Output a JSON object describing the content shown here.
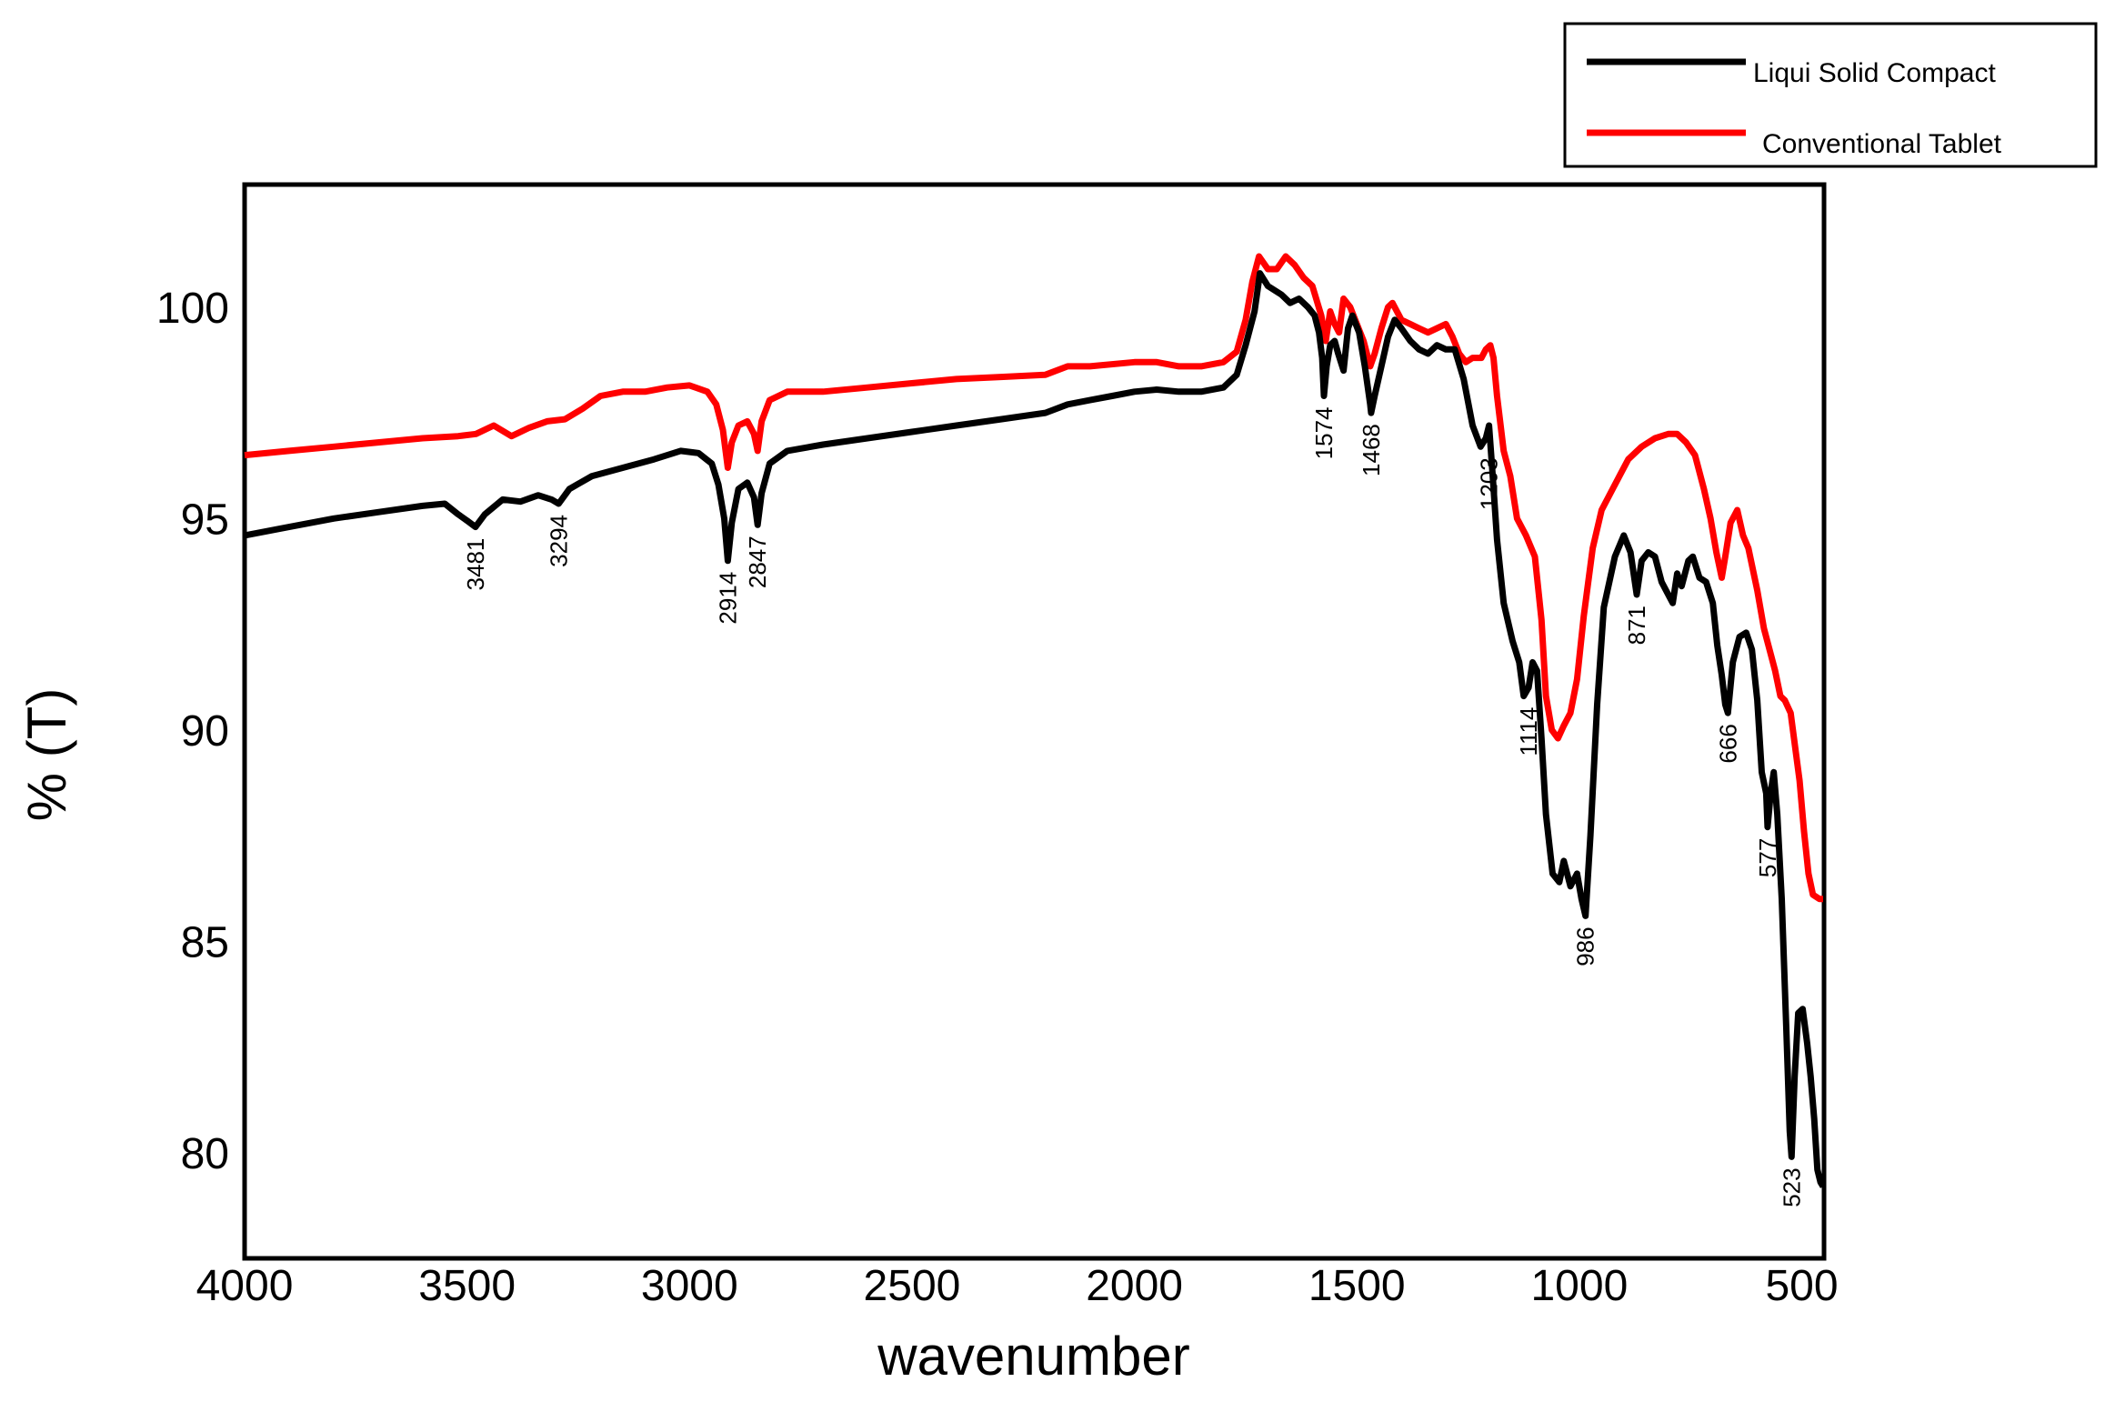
{
  "chart_data": {
    "type": "line",
    "xlabel": "wavenumber",
    "ylabel": "% (T)",
    "xlim": [
      4000,
      450
    ],
    "ylim": [
      77.5,
      102.9
    ],
    "x_reversed": true,
    "grid": false,
    "legend_position": "top-right",
    "xticks": [
      "4000",
      "3500",
      "3000",
      "2500",
      "2000",
      "1500",
      "1000",
      "500"
    ],
    "yticks": [
      "80",
      "85",
      "90",
      "95",
      "100"
    ],
    "colors": {
      "liqui_solid": "#000000",
      "conventional": "#ff0000"
    },
    "series": [
      {
        "name": "Liqui Solid Compact",
        "points": [
          [
            4000,
            94.6
          ],
          [
            3900,
            94.8
          ],
          [
            3800,
            95.0
          ],
          [
            3700,
            95.15
          ],
          [
            3600,
            95.3
          ],
          [
            3550,
            95.35
          ],
          [
            3520,
            95.1
          ],
          [
            3500,
            94.95
          ],
          [
            3481,
            94.8
          ],
          [
            3460,
            95.1
          ],
          [
            3420,
            95.45
          ],
          [
            3380,
            95.4
          ],
          [
            3340,
            95.55
          ],
          [
            3310,
            95.45
          ],
          [
            3294,
            95.35
          ],
          [
            3270,
            95.7
          ],
          [
            3220,
            96.0
          ],
          [
            3150,
            96.2
          ],
          [
            3080,
            96.4
          ],
          [
            3020,
            96.6
          ],
          [
            2980,
            96.55
          ],
          [
            2950,
            96.3
          ],
          [
            2935,
            95.8
          ],
          [
            2922,
            95.0
          ],
          [
            2914,
            94.0
          ],
          [
            2905,
            94.9
          ],
          [
            2890,
            95.7
          ],
          [
            2870,
            95.85
          ],
          [
            2855,
            95.5
          ],
          [
            2847,
            94.85
          ],
          [
            2838,
            95.6
          ],
          [
            2820,
            96.3
          ],
          [
            2780,
            96.6
          ],
          [
            2700,
            96.75
          ],
          [
            2600,
            96.9
          ],
          [
            2500,
            97.05
          ],
          [
            2400,
            97.2
          ],
          [
            2300,
            97.35
          ],
          [
            2200,
            97.5
          ],
          [
            2150,
            97.7
          ],
          [
            2100,
            97.8
          ],
          [
            2050,
            97.9
          ],
          [
            2000,
            98.0
          ],
          [
            1950,
            98.05
          ],
          [
            1900,
            98.0
          ],
          [
            1850,
            98.0
          ],
          [
            1800,
            98.1
          ],
          [
            1770,
            98.4
          ],
          [
            1750,
            99.1
          ],
          [
            1730,
            99.9
          ],
          [
            1718,
            100.8
          ],
          [
            1700,
            100.5
          ],
          [
            1670,
            100.3
          ],
          [
            1650,
            100.1
          ],
          [
            1630,
            100.2
          ],
          [
            1610,
            100.0
          ],
          [
            1595,
            99.8
          ],
          [
            1585,
            99.4
          ],
          [
            1578,
            98.8
          ],
          [
            1574,
            97.9
          ],
          [
            1568,
            98.6
          ],
          [
            1560,
            99.1
          ],
          [
            1550,
            99.2
          ],
          [
            1542,
            98.9
          ],
          [
            1530,
            98.5
          ],
          [
            1520,
            99.5
          ],
          [
            1510,
            99.8
          ],
          [
            1495,
            99.4
          ],
          [
            1482,
            98.6
          ],
          [
            1470,
            97.7
          ],
          [
            1468,
            97.5
          ],
          [
            1460,
            97.9
          ],
          [
            1445,
            98.6
          ],
          [
            1430,
            99.3
          ],
          [
            1415,
            99.7
          ],
          [
            1400,
            99.5
          ],
          [
            1380,
            99.2
          ],
          [
            1360,
            99.0
          ],
          [
            1340,
            98.9
          ],
          [
            1320,
            99.1
          ],
          [
            1300,
            99.0
          ],
          [
            1280,
            99.0
          ],
          [
            1260,
            98.3
          ],
          [
            1240,
            97.2
          ],
          [
            1222,
            96.7
          ],
          [
            1210,
            96.9
          ],
          [
            1203,
            97.2
          ],
          [
            1196,
            96.2
          ],
          [
            1185,
            94.5
          ],
          [
            1170,
            93.0
          ],
          [
            1150,
            92.1
          ],
          [
            1135,
            91.6
          ],
          [
            1125,
            90.8
          ],
          [
            1114,
            91.0
          ],
          [
            1105,
            91.6
          ],
          [
            1095,
            91.4
          ],
          [
            1085,
            89.8
          ],
          [
            1075,
            88.0
          ],
          [
            1060,
            86.6
          ],
          [
            1045,
            86.4
          ],
          [
            1035,
            86.9
          ],
          [
            1020,
            86.3
          ],
          [
            1005,
            86.6
          ],
          [
            995,
            86.0
          ],
          [
            986,
            85.6
          ],
          [
            975,
            87.5
          ],
          [
            960,
            90.6
          ],
          [
            945,
            92.9
          ],
          [
            920,
            94.1
          ],
          [
            900,
            94.6
          ],
          [
            885,
            94.2
          ],
          [
            871,
            93.2
          ],
          [
            860,
            94.0
          ],
          [
            845,
            94.2
          ],
          [
            830,
            94.1
          ],
          [
            815,
            93.5
          ],
          [
            800,
            93.2
          ],
          [
            790,
            93.0
          ],
          [
            780,
            93.7
          ],
          [
            770,
            93.4
          ],
          [
            755,
            94.0
          ],
          [
            745,
            94.1
          ],
          [
            730,
            93.6
          ],
          [
            715,
            93.5
          ],
          [
            700,
            93.0
          ],
          [
            690,
            92.0
          ],
          [
            680,
            91.3
          ],
          [
            672,
            90.6
          ],
          [
            666,
            90.4
          ],
          [
            655,
            91.6
          ],
          [
            640,
            92.2
          ],
          [
            625,
            92.3
          ],
          [
            612,
            91.9
          ],
          [
            600,
            90.7
          ],
          [
            590,
            89.0
          ],
          [
            580,
            88.5
          ],
          [
            577,
            87.7
          ],
          [
            570,
            88.5
          ],
          [
            563,
            89.0
          ],
          [
            555,
            88.0
          ],
          [
            545,
            86.0
          ],
          [
            535,
            83.0
          ],
          [
            527,
            80.5
          ],
          [
            523,
            79.9
          ],
          [
            516,
            81.8
          ],
          [
            508,
            83.3
          ],
          [
            498,
            83.4
          ],
          [
            488,
            82.6
          ],
          [
            480,
            81.8
          ],
          [
            472,
            80.8
          ],
          [
            465,
            79.6
          ],
          [
            458,
            79.3
          ],
          [
            452,
            79.2
          ]
        ]
      },
      {
        "name": "Conventional Tablet",
        "points": [
          [
            4000,
            96.5
          ],
          [
            3900,
            96.6
          ],
          [
            3800,
            96.7
          ],
          [
            3700,
            96.8
          ],
          [
            3600,
            96.9
          ],
          [
            3520,
            96.95
          ],
          [
            3480,
            97.0
          ],
          [
            3440,
            97.2
          ],
          [
            3400,
            96.95
          ],
          [
            3360,
            97.15
          ],
          [
            3320,
            97.3
          ],
          [
            3280,
            97.35
          ],
          [
            3240,
            97.6
          ],
          [
            3200,
            97.9
          ],
          [
            3150,
            98.0
          ],
          [
            3100,
            98.0
          ],
          [
            3050,
            98.1
          ],
          [
            3000,
            98.15
          ],
          [
            2960,
            98.0
          ],
          [
            2940,
            97.7
          ],
          [
            2925,
            97.1
          ],
          [
            2914,
            96.2
          ],
          [
            2905,
            96.8
          ],
          [
            2890,
            97.2
          ],
          [
            2870,
            97.3
          ],
          [
            2855,
            97.0
          ],
          [
            2847,
            96.6
          ],
          [
            2838,
            97.3
          ],
          [
            2820,
            97.8
          ],
          [
            2780,
            98.0
          ],
          [
            2700,
            98.0
          ],
          [
            2600,
            98.1
          ],
          [
            2500,
            98.2
          ],
          [
            2400,
            98.3
          ],
          [
            2300,
            98.35
          ],
          [
            2200,
            98.4
          ],
          [
            2150,
            98.6
          ],
          [
            2100,
            98.6
          ],
          [
            2000,
            98.7
          ],
          [
            1950,
            98.7
          ],
          [
            1900,
            98.6
          ],
          [
            1850,
            98.6
          ],
          [
            1800,
            98.7
          ],
          [
            1770,
            98.95
          ],
          [
            1750,
            99.7
          ],
          [
            1735,
            100.6
          ],
          [
            1720,
            101.2
          ],
          [
            1700,
            100.9
          ],
          [
            1680,
            100.9
          ],
          [
            1660,
            101.2
          ],
          [
            1640,
            101.0
          ],
          [
            1620,
            100.7
          ],
          [
            1600,
            100.5
          ],
          [
            1580,
            99.8
          ],
          [
            1570,
            99.2
          ],
          [
            1560,
            99.9
          ],
          [
            1550,
            99.6
          ],
          [
            1540,
            99.4
          ],
          [
            1530,
            100.2
          ],
          [
            1515,
            100.0
          ],
          [
            1500,
            99.6
          ],
          [
            1485,
            99.2
          ],
          [
            1470,
            98.6
          ],
          [
            1460,
            98.9
          ],
          [
            1445,
            99.5
          ],
          [
            1430,
            100.0
          ],
          [
            1420,
            100.1
          ],
          [
            1400,
            99.7
          ],
          [
            1380,
            99.6
          ],
          [
            1360,
            99.5
          ],
          [
            1340,
            99.4
          ],
          [
            1320,
            99.5
          ],
          [
            1300,
            99.6
          ],
          [
            1285,
            99.3
          ],
          [
            1270,
            98.9
          ],
          [
            1255,
            98.7
          ],
          [
            1240,
            98.8
          ],
          [
            1220,
            98.8
          ],
          [
            1210,
            99.0
          ],
          [
            1200,
            99.1
          ],
          [
            1193,
            98.8
          ],
          [
            1185,
            97.9
          ],
          [
            1170,
            96.6
          ],
          [
            1155,
            96.0
          ],
          [
            1140,
            95.0
          ],
          [
            1120,
            94.6
          ],
          [
            1100,
            94.1
          ],
          [
            1085,
            92.6
          ],
          [
            1075,
            90.8
          ],
          [
            1062,
            90.0
          ],
          [
            1048,
            89.8
          ],
          [
            1035,
            90.1
          ],
          [
            1020,
            90.4
          ],
          [
            1005,
            91.2
          ],
          [
            990,
            92.7
          ],
          [
            970,
            94.3
          ],
          [
            950,
            95.2
          ],
          [
            920,
            95.8
          ],
          [
            890,
            96.4
          ],
          [
            860,
            96.7
          ],
          [
            830,
            96.9
          ],
          [
            800,
            97.0
          ],
          [
            780,
            97.0
          ],
          [
            760,
            96.8
          ],
          [
            740,
            96.5
          ],
          [
            720,
            95.7
          ],
          [
            705,
            95.0
          ],
          [
            692,
            94.2
          ],
          [
            680,
            93.6
          ],
          [
            672,
            94.1
          ],
          [
            660,
            94.9
          ],
          [
            645,
            95.2
          ],
          [
            632,
            94.6
          ],
          [
            620,
            94.3
          ],
          [
            600,
            93.3
          ],
          [
            585,
            92.4
          ],
          [
            570,
            91.8
          ],
          [
            560,
            91.4
          ],
          [
            548,
            90.8
          ],
          [
            538,
            90.7
          ],
          [
            525,
            90.4
          ],
          [
            515,
            89.6
          ],
          [
            505,
            88.8
          ],
          [
            495,
            87.6
          ],
          [
            485,
            86.6
          ],
          [
            475,
            86.1
          ],
          [
            460,
            86.0
          ],
          [
            452,
            86.0
          ]
        ]
      }
    ],
    "peak_labels": [
      {
        "text": "3481",
        "x": 3481,
        "y": 94.8
      },
      {
        "text": "3294",
        "x": 3294,
        "y": 95.35
      },
      {
        "text": "2914",
        "x": 2914,
        "y": 94.0
      },
      {
        "text": "2847",
        "x": 2847,
        "y": 94.85
      },
      {
        "text": "1574",
        "x": 1574,
        "y": 97.9
      },
      {
        "text": "1468",
        "x": 1468,
        "y": 97.5
      },
      {
        "text": "1203",
        "x": 1203,
        "y": 96.7
      },
      {
        "text": "1114",
        "x": 1114,
        "y": 90.8
      },
      {
        "text": "986",
        "x": 986,
        "y": 85.6
      },
      {
        "text": "871",
        "x": 871,
        "y": 93.2
      },
      {
        "text": "666",
        "x": 666,
        "y": 90.4
      },
      {
        "text": "577",
        "x": 577,
        "y": 87.7
      },
      {
        "text": "523",
        "x": 523,
        "y": 79.9
      }
    ]
  }
}
